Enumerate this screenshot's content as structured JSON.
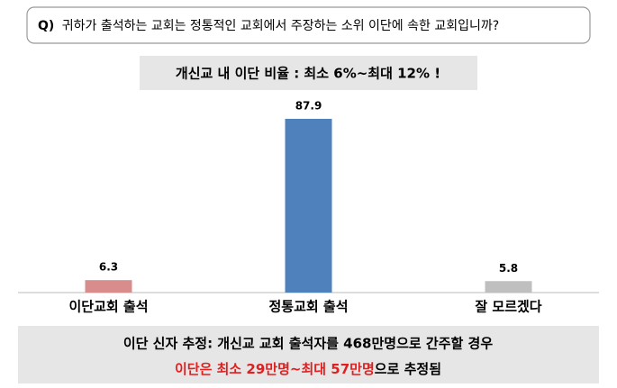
{
  "chart_data": {
    "type": "bar",
    "question_prefix": "Q)",
    "question": "귀하가 출석하는 교회는 정통적인 교회에서 주장하는 소위 이단에 속한 교회입니까?",
    "subtitle": "개신교 내 이단 비율 : 최소 6%~최대 12% !",
    "categories": [
      "이단교회 출석",
      "정통교회 출석",
      "잘 모르겠다"
    ],
    "values": [
      6.3,
      87.9,
      5.8
    ],
    "colors": [
      "#d98c8c",
      "#4f81bd",
      "#bfbfbf"
    ],
    "note_line1": "이단 신자 추정: 개신교 교회 출석자를 468만명으로 간주할 경우",
    "note_line2_highlight": "이단은 최소 29만명~최대 57만명",
    "note_line2_rest": "으로 추정됨"
  }
}
